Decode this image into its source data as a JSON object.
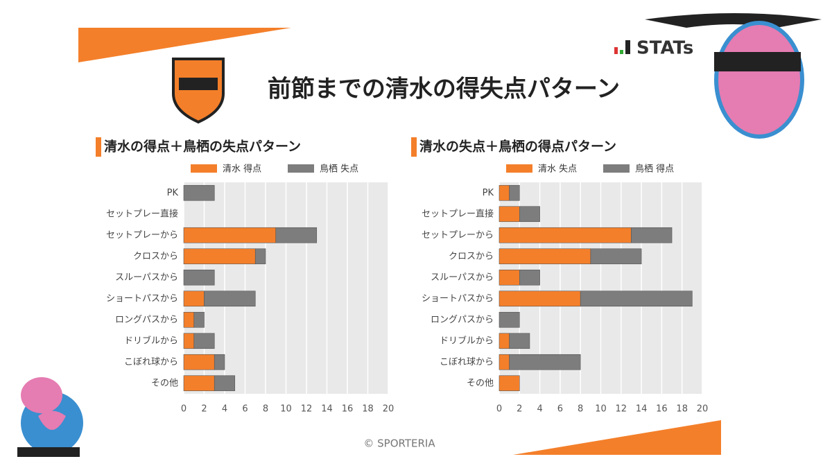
{
  "title": "前節までの清水の得失点パターン",
  "stats_label": "STATs",
  "credit": "© SPORTERIA",
  "chart_data": [
    {
      "type": "bar",
      "orientation": "horizontal",
      "stacked": true,
      "title": "清水の得点＋鳥栖の失点パターン",
      "categories": [
        "PK",
        "セットプレー直接",
        "セットプレーから",
        "クロスから",
        "スルーパスから",
        "ショートパスから",
        "ロングパスから",
        "ドリブルから",
        "こぼれ球から",
        "その他"
      ],
      "series": [
        {
          "name": "清水 得点",
          "color": "#f47f2a",
          "values": [
            0,
            0,
            9,
            7,
            0,
            2,
            1,
            1,
            3,
            3
          ]
        },
        {
          "name": "鳥栖 失点",
          "color": "#7d7d7d",
          "values": [
            3,
            0,
            4,
            1,
            3,
            5,
            1,
            2,
            1,
            2
          ]
        }
      ],
      "xlim": [
        0,
        20
      ],
      "xticks": [
        0,
        2,
        4,
        6,
        8,
        10,
        12,
        14,
        16,
        18,
        20
      ],
      "grid": true
    },
    {
      "type": "bar",
      "orientation": "horizontal",
      "stacked": true,
      "title": "清水の失点＋鳥栖の得点パターン",
      "categories": [
        "PK",
        "セットプレー直接",
        "セットプレーから",
        "クロスから",
        "スルーパスから",
        "ショートパスから",
        "ロングパスから",
        "ドリブルから",
        "こぼれ球から",
        "その他"
      ],
      "series": [
        {
          "name": "清水 失点",
          "color": "#f47f2a",
          "values": [
            1,
            2,
            13,
            9,
            2,
            8,
            0,
            1,
            1,
            2
          ]
        },
        {
          "name": "鳥栖 得点",
          "color": "#7d7d7d",
          "values": [
            1,
            2,
            4,
            5,
            2,
            11,
            2,
            2,
            7,
            0
          ]
        }
      ],
      "xlim": [
        0,
        20
      ],
      "xticks": [
        0,
        2,
        4,
        6,
        8,
        10,
        12,
        14,
        16,
        18,
        20
      ],
      "grid": true
    }
  ]
}
